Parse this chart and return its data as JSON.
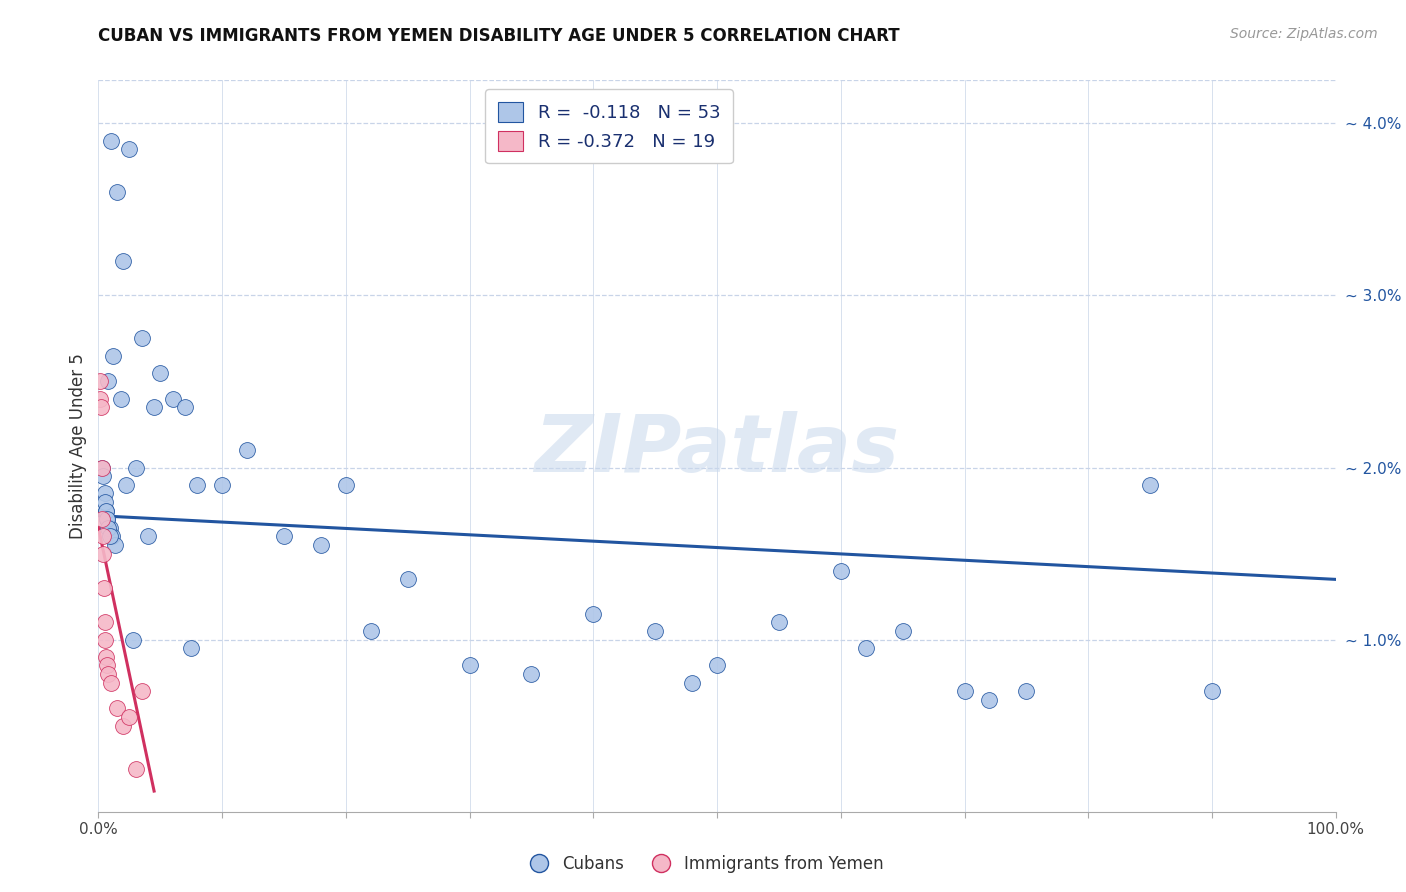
{
  "title": "CUBAN VS IMMIGRANTS FROM YEMEN DISABILITY AGE UNDER 5 CORRELATION CHART",
  "source": "Source: ZipAtlas.com",
  "ylabel": "Disability Age Under 5",
  "watermark": "ZIPatlas",
  "blue_r": "-0.118",
  "blue_n": "53",
  "pink_r": "-0.372",
  "pink_n": "19",
  "blue_color": "#aec6e8",
  "pink_color": "#f5b8c8",
  "blue_line_color": "#2255a0",
  "pink_line_color": "#d03060",
  "bg_color": "#ffffff",
  "grid_color": "#c8d4e8",
  "xlim": [
    0,
    100
  ],
  "ylim": [
    0,
    4.25
  ],
  "blue_scatter_x": [
    1.0,
    2.5,
    1.5,
    2.0,
    3.5,
    1.2,
    0.8,
    1.8,
    3.0,
    2.2,
    5.0,
    6.0,
    4.5,
    7.0,
    8.0,
    10.0,
    12.0,
    15.0,
    18.0,
    20.0,
    25.0,
    30.0,
    35.0,
    40.0,
    45.0,
    50.0,
    55.0,
    60.0,
    65.0,
    70.0,
    75.0,
    85.0,
    0.3,
    0.4,
    0.5,
    0.6,
    0.7,
    0.9,
    1.1,
    1.3,
    2.8,
    4.0,
    7.5,
    22.0,
    48.0,
    62.0,
    72.0,
    90.0,
    0.5,
    0.6,
    0.7,
    0.8,
    0.9
  ],
  "blue_scatter_y": [
    3.9,
    3.85,
    3.6,
    3.2,
    2.75,
    2.65,
    2.5,
    2.4,
    2.0,
    1.9,
    2.55,
    2.4,
    2.35,
    2.35,
    1.9,
    1.9,
    2.1,
    1.6,
    1.55,
    1.9,
    1.35,
    0.85,
    0.8,
    1.15,
    1.05,
    0.85,
    1.1,
    1.4,
    1.05,
    0.7,
    0.7,
    1.9,
    2.0,
    1.95,
    1.85,
    1.75,
    1.7,
    1.65,
    1.6,
    1.55,
    1.0,
    1.6,
    0.95,
    1.05,
    0.75,
    0.95,
    0.65,
    0.7,
    1.8,
    1.75,
    1.7,
    1.65,
    1.6
  ],
  "pink_scatter_x": [
    0.1,
    0.15,
    0.2,
    0.25,
    0.3,
    0.35,
    0.4,
    0.45,
    0.5,
    0.55,
    0.6,
    0.7,
    0.8,
    1.0,
    1.5,
    2.0,
    2.5,
    3.0,
    3.5
  ],
  "pink_scatter_y": [
    2.5,
    2.4,
    2.35,
    2.0,
    1.7,
    1.6,
    1.5,
    1.3,
    1.1,
    1.0,
    0.9,
    0.85,
    0.8,
    0.75,
    0.6,
    0.5,
    0.55,
    0.25,
    0.7
  ],
  "blue_line_x": [
    0,
    100
  ],
  "blue_line_y": [
    1.72,
    1.35
  ],
  "pink_line_x": [
    0,
    4.5
  ],
  "pink_line_y": [
    1.65,
    0.12
  ]
}
